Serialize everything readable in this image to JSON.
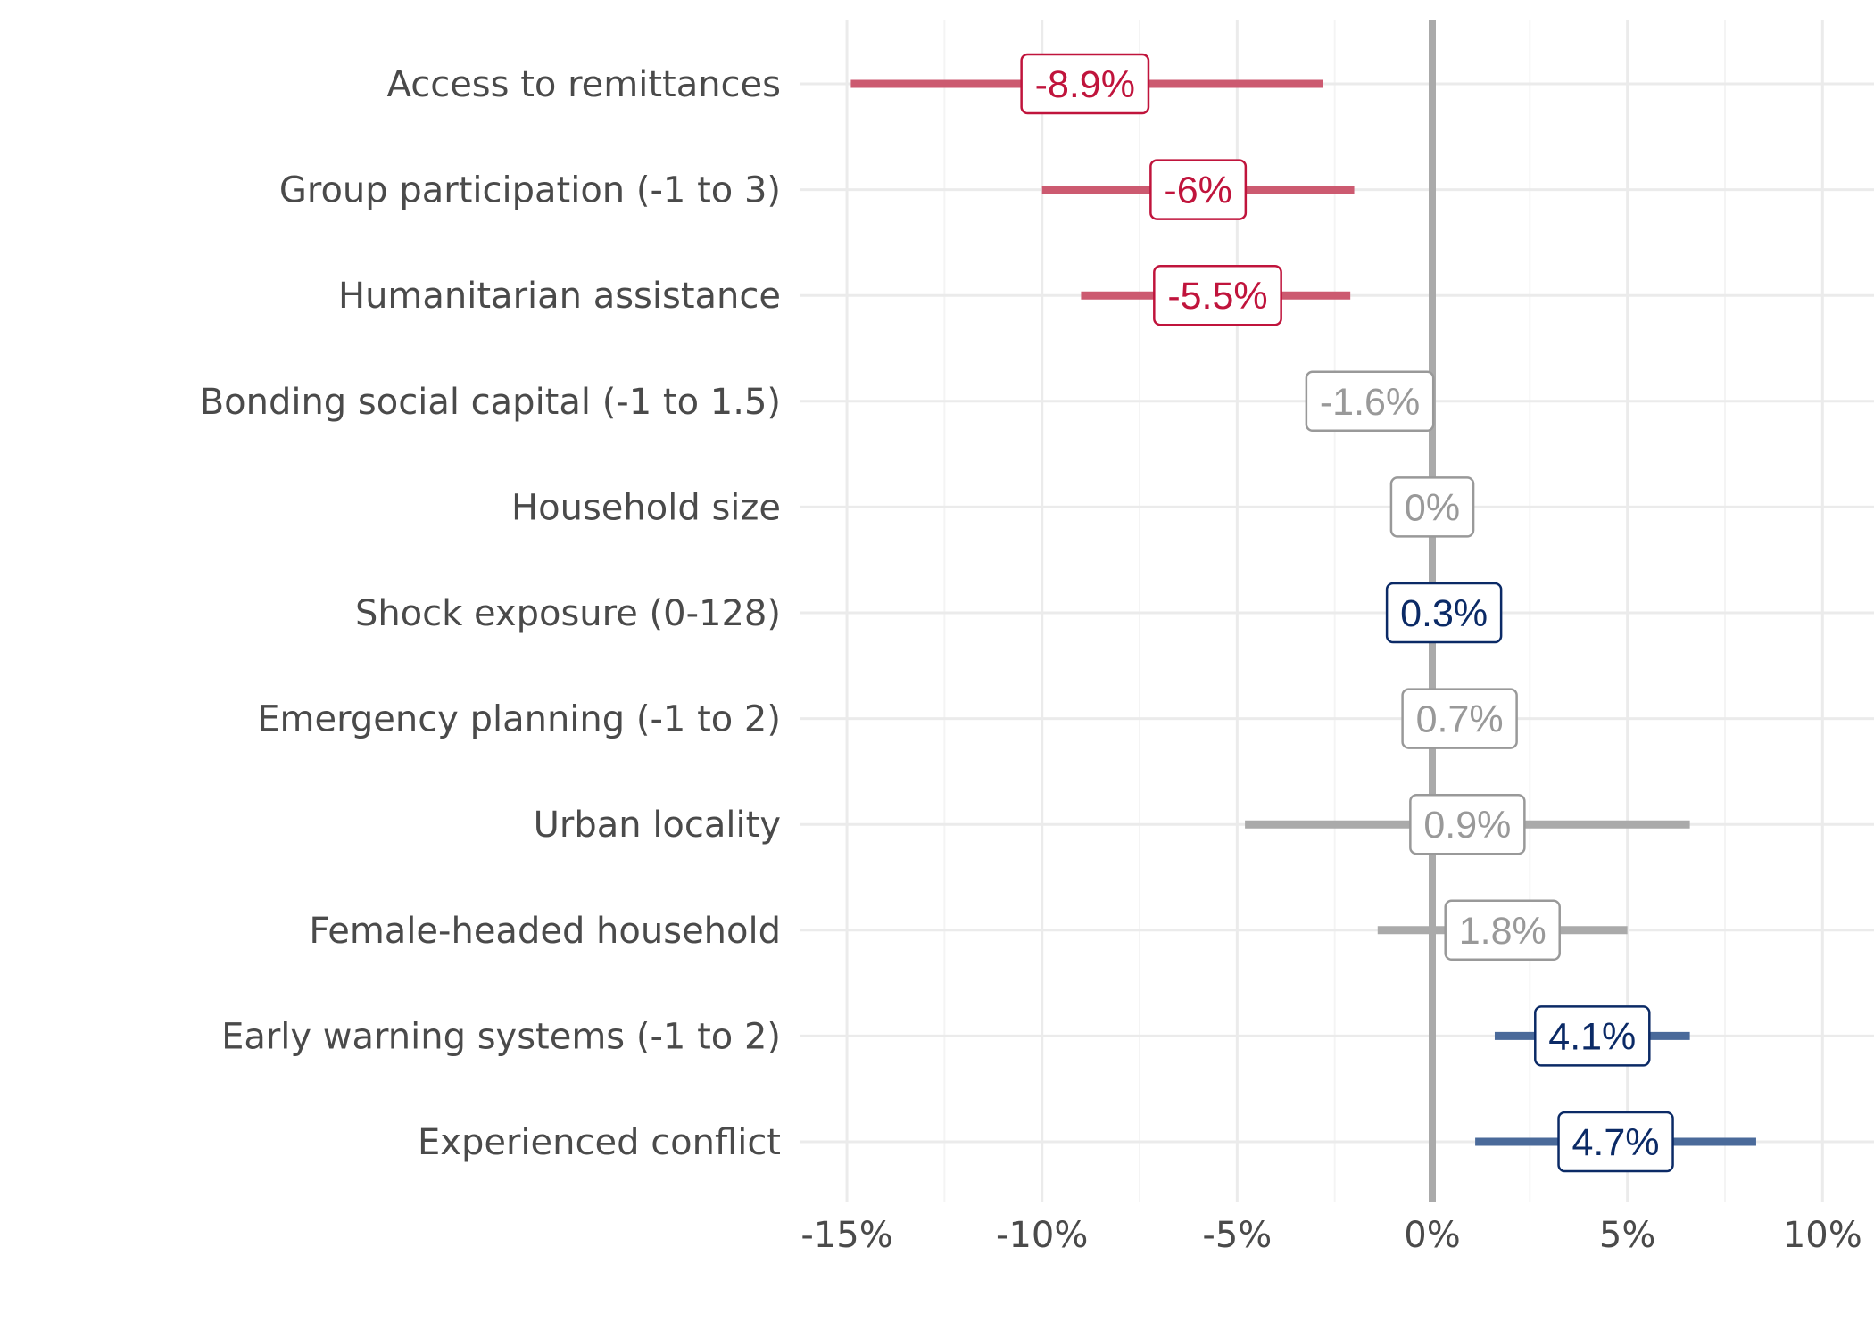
{
  "chart_data": {
    "type": "forest",
    "title": "",
    "xlabel": "",
    "ylabel": "",
    "xlim": [
      -16.5,
      11.5
    ],
    "x_ticks": [
      -15,
      -10,
      -5,
      0,
      5,
      10
    ],
    "x_tick_labels": [
      "-15%",
      "-10%",
      "-5%",
      "0%",
      "5%",
      "10%"
    ],
    "grid": true,
    "reference_line": 0,
    "colors": {
      "negative": "#c0143c",
      "negative_bar": "#cc5a70",
      "positive": "#0b2a66",
      "positive_bar": "#4a6a9a",
      "neutral": "#999999",
      "neutral_bar": "#aaaaaa",
      "grid": "#ebebeb",
      "zero_line": "#aaaaaa"
    },
    "items": [
      {
        "label": "Access to remittances",
        "estimate": -8.9,
        "estimate_label": "-8.9%",
        "ci_low": -14.9,
        "ci_high": -2.8,
        "significance": "negative"
      },
      {
        "label": "Group participation (-1 to 3)",
        "estimate": -6.0,
        "estimate_label": "-6%",
        "ci_low": -10.0,
        "ci_high": -2.0,
        "significance": "negative"
      },
      {
        "label": "Humanitarian assistance",
        "estimate": -5.5,
        "estimate_label": "-5.5%",
        "ci_low": -9.0,
        "ci_high": -2.1,
        "significance": "negative"
      },
      {
        "label": "Bonding social capital (-1 to 1.5)",
        "estimate": -1.6,
        "estimate_label": "-1.6%",
        "ci_low": -1.9,
        "ci_high": -1.3,
        "significance": "neutral"
      },
      {
        "label": "Household size",
        "estimate": 0.0,
        "estimate_label": "0%",
        "ci_low": -0.1,
        "ci_high": 0.1,
        "significance": "neutral"
      },
      {
        "label": "Shock exposure (0-128)",
        "estimate": 0.3,
        "estimate_label": "0.3%",
        "ci_low": 0.2,
        "ci_high": 0.4,
        "significance": "positive"
      },
      {
        "label": "Emergency planning (-1 to 2)",
        "estimate": 0.7,
        "estimate_label": "0.7%",
        "ci_low": 0.3,
        "ci_high": 1.1,
        "significance": "neutral"
      },
      {
        "label": "Urban locality",
        "estimate": 0.9,
        "estimate_label": "0.9%",
        "ci_low": -4.8,
        "ci_high": 6.6,
        "significance": "neutral"
      },
      {
        "label": "Female-headed household",
        "estimate": 1.8,
        "estimate_label": "1.8%",
        "ci_low": -1.4,
        "ci_high": 5.0,
        "significance": "neutral"
      },
      {
        "label": "Early warning systems (-1 to 2)",
        "estimate": 4.1,
        "estimate_label": "4.1%",
        "ci_low": 1.6,
        "ci_high": 6.6,
        "significance": "positive"
      },
      {
        "label": "Experienced conflict",
        "estimate": 4.7,
        "estimate_label": "4.7%",
        "ci_low": 1.1,
        "ci_high": 8.3,
        "significance": "positive"
      }
    ]
  }
}
